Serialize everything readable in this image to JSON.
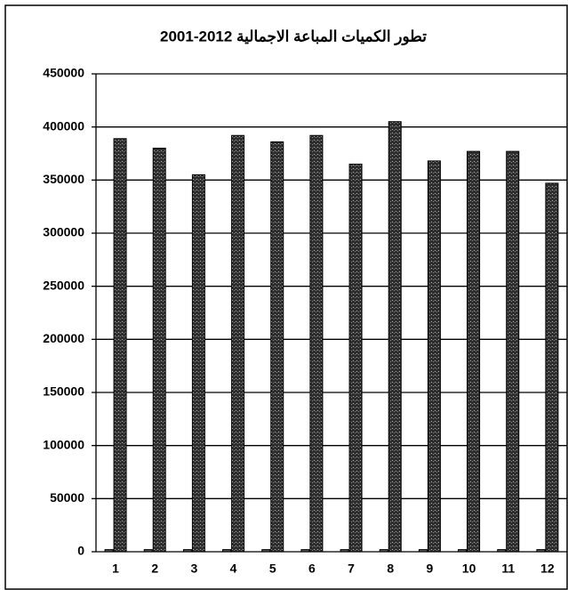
{
  "chart_data": {
    "type": "bar",
    "title": "تطور الكميات المباعة الاجمالية 2012-2001",
    "categories": [
      "1",
      "2",
      "3",
      "4",
      "5",
      "6",
      "7",
      "8",
      "9",
      "10",
      "11",
      "12"
    ],
    "series": [
      {
        "color": "#555555",
        "values": [
          2001,
          2002,
          2003,
          2004,
          2005,
          2006,
          2007,
          2008,
          2009,
          2010,
          2011,
          2012
        ]
      },
      {
        "color": "#3a3a3a",
        "values": [
          389000,
          380000,
          355000,
          392000,
          386000,
          392000,
          365000,
          405000,
          368000,
          377000,
          377000,
          347000
        ]
      }
    ],
    "ylim": [
      0,
      450000
    ],
    "yticks": [
      0,
      50000,
      100000,
      150000,
      200000,
      250000,
      300000,
      350000,
      400000,
      450000
    ],
    "grid": true
  }
}
